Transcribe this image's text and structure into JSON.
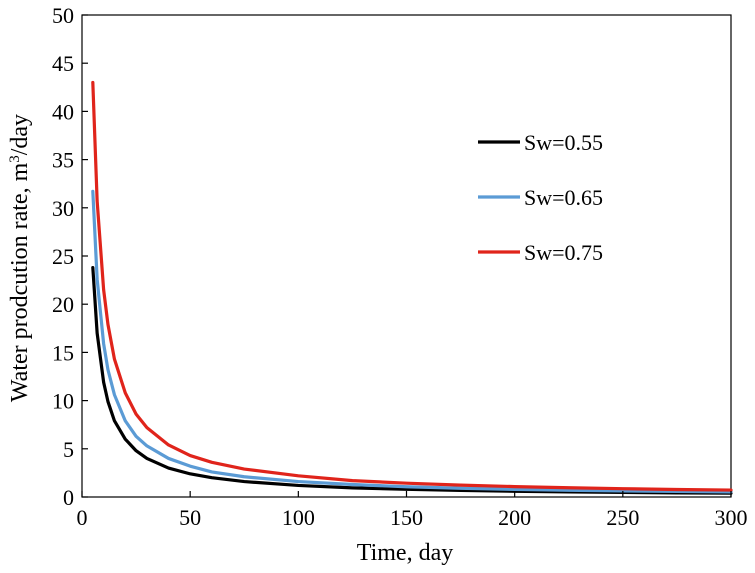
{
  "chart_data": {
    "type": "line",
    "title": "",
    "xlabel": "Time, day",
    "ylabel_main": "Water prodcution rate,  m",
    "ylabel_sup": "3",
    "ylabel_tail": "/day",
    "xlim": [
      0,
      300
    ],
    "ylim": [
      0,
      50
    ],
    "xticks": [
      0,
      50,
      100,
      150,
      200,
      250,
      300
    ],
    "yticks": [
      0,
      5,
      10,
      15,
      20,
      25,
      30,
      35,
      40,
      45,
      50
    ],
    "grid": false,
    "legend_position": "right",
    "x": [
      5,
      7,
      10,
      12,
      15,
      20,
      25,
      30,
      40,
      50,
      60,
      75,
      100,
      125,
      150,
      175,
      200,
      225,
      250,
      275,
      300
    ],
    "series": [
      {
        "name": "Sw=0.55",
        "color": "#000000",
        "values": [
          23.8,
          17.0,
          11.9,
          9.9,
          7.9,
          6.0,
          4.8,
          4.0,
          3.0,
          2.4,
          2.0,
          1.6,
          1.2,
          0.95,
          0.8,
          0.68,
          0.6,
          0.53,
          0.48,
          0.43,
          0.4
        ]
      },
      {
        "name": "Sw=0.65",
        "color": "#5b9bd5",
        "values": [
          31.7,
          22.6,
          15.9,
          13.2,
          10.6,
          7.9,
          6.3,
          5.3,
          4.0,
          3.2,
          2.6,
          2.1,
          1.6,
          1.3,
          1.06,
          0.91,
          0.79,
          0.7,
          0.63,
          0.58,
          0.53
        ]
      },
      {
        "name": "Sw=0.75",
        "color": "#e0241b",
        "values": [
          43.0,
          30.7,
          21.5,
          17.9,
          14.3,
          10.8,
          8.6,
          7.2,
          5.4,
          4.3,
          3.6,
          2.9,
          2.2,
          1.7,
          1.43,
          1.23,
          1.08,
          0.96,
          0.86,
          0.78,
          0.72
        ]
      }
    ]
  }
}
